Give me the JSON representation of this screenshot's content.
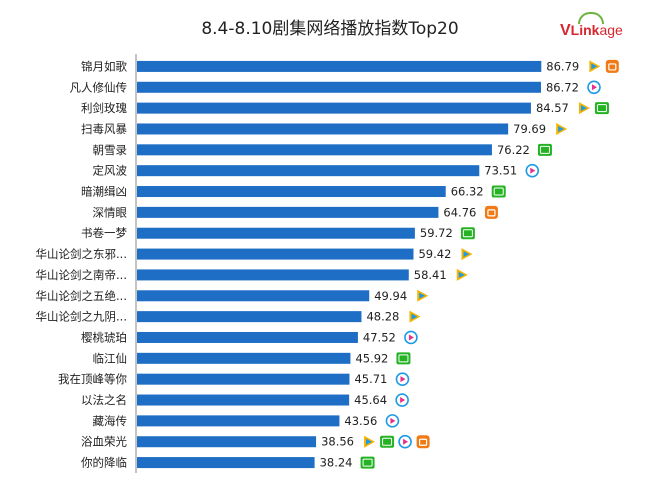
{
  "title": "8.4-8.10剧集网络播放指数Top20",
  "logo": {
    "v": "V",
    "link": "Link",
    "age": "age"
  },
  "colors": {
    "bar": "#1e6ec5",
    "axis": "#8a8a8a",
    "iqiyi": "#25b324",
    "youku": "#1f9be6",
    "tencent": "#f5b400",
    "mgtv": "#f07a15"
  },
  "chart_data": {
    "type": "bar",
    "orientation": "horizontal",
    "title": "8.4-8.10剧集网络播放指数Top20",
    "xlim": [
      0,
      100
    ],
    "categories": [
      "锦月如歌",
      "凡人修仙传",
      "利剑玫瑰",
      "扫毒风暴",
      "朝雪录",
      "定风波",
      "暗潮缉凶",
      "深情眼",
      "书卷一梦",
      "华山论剑之东邪...",
      "华山论剑之南帝...",
      "华山论剑之五绝...",
      "华山论剑之九阴...",
      "樱桃琥珀",
      "临江仙",
      "我在顶峰等你",
      "以法之名",
      "藏海传",
      "浴血荣光",
      "你的降临"
    ],
    "values": [
      86.79,
      86.72,
      84.57,
      79.69,
      76.22,
      73.51,
      66.32,
      64.76,
      59.72,
      59.42,
      58.41,
      49.94,
      48.28,
      47.52,
      45.92,
      45.71,
      45.64,
      43.56,
      38.56,
      38.24
    ],
    "value_labels": [
      "86.79",
      "86.72",
      "84.57",
      "79.69",
      "76.22",
      "73.51",
      "66.32",
      "64.76",
      "59.72",
      "59.42",
      "58.41",
      "49.94",
      "48.28",
      "47.52",
      "45.92",
      "45.71",
      "45.64",
      "43.56",
      "38.56",
      "38.24"
    ],
    "platforms": [
      [
        "tencent-video",
        "mgtv"
      ],
      [
        "youku"
      ],
      [
        "tencent-video",
        "iqiyi"
      ],
      [
        "tencent-video"
      ],
      [
        "iqiyi"
      ],
      [
        "youku"
      ],
      [
        "iqiyi"
      ],
      [
        "mgtv"
      ],
      [
        "iqiyi"
      ],
      [
        "tencent-video"
      ],
      [
        "tencent-video"
      ],
      [
        "tencent-video"
      ],
      [
        "tencent-video"
      ],
      [
        "youku"
      ],
      [
        "iqiyi"
      ],
      [
        "youku"
      ],
      [
        "youku"
      ],
      [
        "youku"
      ],
      [
        "tencent-video",
        "iqiyi",
        "youku",
        "mgtv"
      ],
      [
        "iqiyi"
      ]
    ]
  }
}
